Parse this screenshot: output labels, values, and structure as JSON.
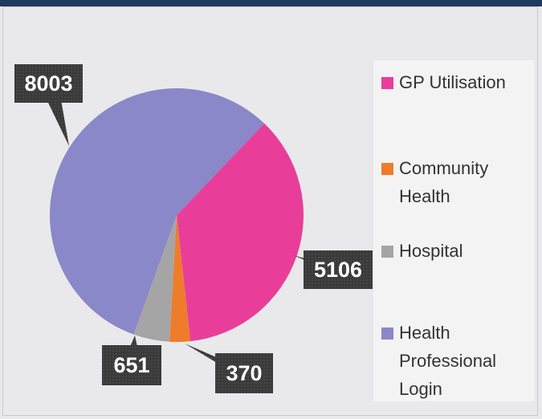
{
  "chart_data": {
    "type": "pie",
    "categories": [
      "GP Utilisation",
      "Community Health",
      "Hospital",
      "Health Professional Login"
    ],
    "values": [
      5106,
      370,
      651,
      8003
    ],
    "colors": [
      "#e83e9a",
      "#ef7c2b",
      "#a5a5a5",
      "#8a88c8"
    ]
  }
}
